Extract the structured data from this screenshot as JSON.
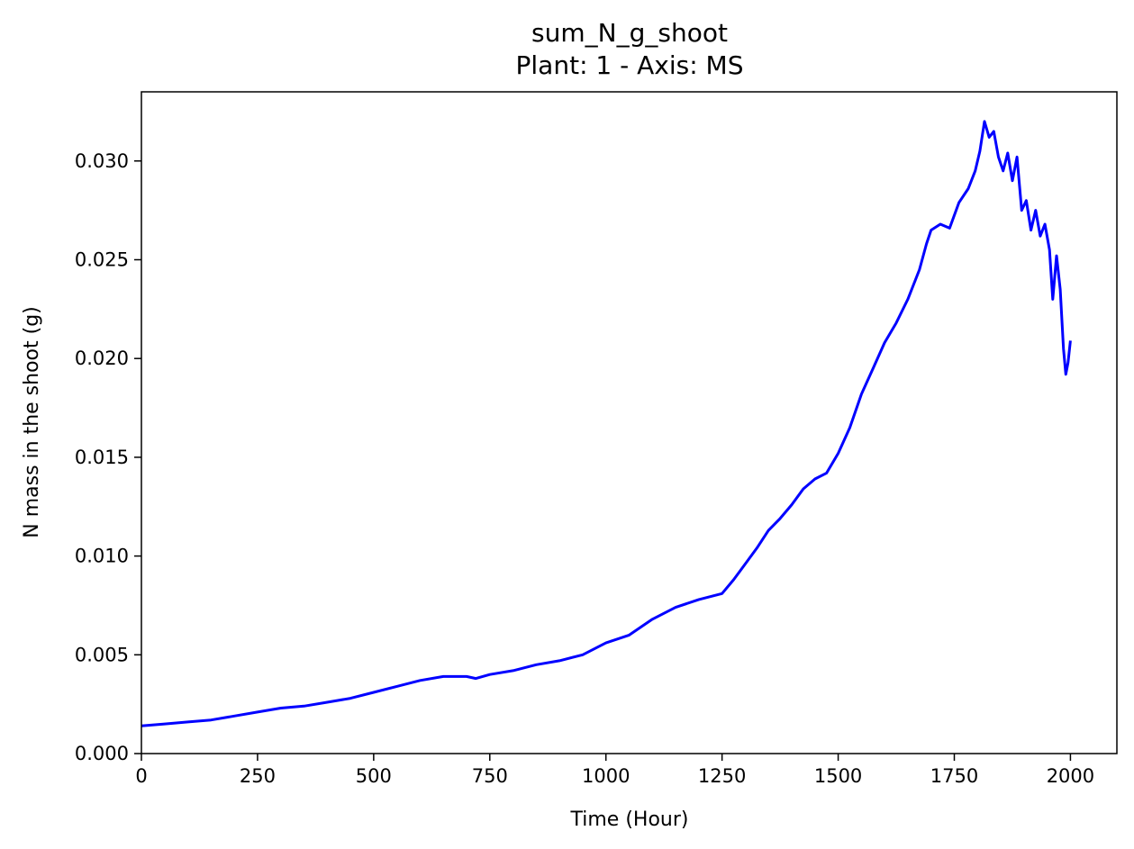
{
  "chart_data": {
    "type": "line",
    "title": "sum_N_g_shoot",
    "subtitle": "Plant: 1 - Axis: MS",
    "xlabel": "Time (Hour)",
    "ylabel": "N mass in the shoot (g)",
    "xlim": [
      0,
      2100
    ],
    "ylim": [
      0,
      0.0335
    ],
    "xticks": [
      0,
      250,
      500,
      750,
      1000,
      1250,
      1500,
      1750,
      2000
    ],
    "xtick_labels": [
      "0",
      "250",
      "500",
      "750",
      "1000",
      "1250",
      "1500",
      "1750",
      "2000"
    ],
    "yticks": [
      0,
      0.005,
      0.01,
      0.015,
      0.02,
      0.025,
      0.03
    ],
    "ytick_labels": [
      "0.000",
      "0.005",
      "0.010",
      "0.015",
      "0.020",
      "0.025",
      "0.030"
    ],
    "grid": false,
    "series": [
      {
        "color": "#0000ff",
        "x": [
          0,
          50,
          100,
          150,
          200,
          250,
          300,
          350,
          400,
          450,
          500,
          550,
          600,
          650,
          700,
          720,
          750,
          800,
          850,
          900,
          950,
          1000,
          1050,
          1100,
          1150,
          1200,
          1250,
          1275,
          1300,
          1325,
          1350,
          1375,
          1400,
          1425,
          1450,
          1475,
          1500,
          1525,
          1550,
          1575,
          1600,
          1625,
          1650,
          1675,
          1690,
          1700,
          1720,
          1740,
          1760,
          1780,
          1795,
          1805,
          1815,
          1825,
          1835,
          1845,
          1855,
          1865,
          1875,
          1885,
          1895,
          1905,
          1915,
          1925,
          1935,
          1945,
          1955,
          1962,
          1970,
          1978,
          1985,
          1990,
          1995,
          2000
        ],
        "y": [
          0.0014,
          0.0015,
          0.0016,
          0.0017,
          0.0019,
          0.0021,
          0.0023,
          0.0024,
          0.0026,
          0.0028,
          0.0031,
          0.0034,
          0.0037,
          0.0039,
          0.0039,
          0.0038,
          0.004,
          0.0042,
          0.0045,
          0.0047,
          0.005,
          0.0056,
          0.006,
          0.0068,
          0.0074,
          0.0078,
          0.0081,
          0.0088,
          0.0096,
          0.0104,
          0.0113,
          0.0119,
          0.0126,
          0.0134,
          0.0139,
          0.0142,
          0.0152,
          0.0165,
          0.0182,
          0.0195,
          0.0208,
          0.0218,
          0.023,
          0.0245,
          0.0258,
          0.0265,
          0.0268,
          0.0266,
          0.0279,
          0.0286,
          0.0295,
          0.0305,
          0.032,
          0.0312,
          0.0315,
          0.0302,
          0.0295,
          0.0304,
          0.029,
          0.0302,
          0.0275,
          0.028,
          0.0265,
          0.0275,
          0.0262,
          0.0268,
          0.0255,
          0.023,
          0.0252,
          0.0235,
          0.0205,
          0.0192,
          0.0198,
          0.0209
        ]
      }
    ]
  }
}
